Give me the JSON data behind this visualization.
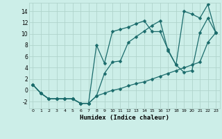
{
  "xlabel": "Humidex (Indice chaleur)",
  "bg_color": "#cceee8",
  "grid_color": "#b0d4cc",
  "line_color": "#1a6b6b",
  "xlim": [
    -0.5,
    23.5
  ],
  "ylim": [
    -3.2,
    15.5
  ],
  "xticks": [
    0,
    1,
    2,
    3,
    4,
    5,
    6,
    7,
    8,
    9,
    10,
    11,
    12,
    13,
    14,
    15,
    16,
    17,
    18,
    19,
    20,
    21,
    22,
    23
  ],
  "yticks": [
    -2,
    0,
    2,
    4,
    6,
    8,
    10,
    12,
    14
  ],
  "line1_x": [
    0,
    1,
    2,
    3,
    4,
    5,
    6,
    7,
    8,
    9,
    10,
    11,
    12,
    13,
    14,
    15,
    16,
    17,
    18,
    19,
    20,
    21,
    22,
    23
  ],
  "line1_y": [
    1,
    -0.5,
    -1.5,
    -1.5,
    -1.5,
    -1.5,
    -2.3,
    -2.3,
    8,
    4.8,
    10.4,
    10.8,
    11.2,
    11.8,
    12.3,
    10.4,
    10.4,
    7.2,
    4.5,
    14,
    13.5,
    12.8,
    15.2,
    10.2
  ],
  "line2_x": [
    0,
    1,
    2,
    3,
    4,
    5,
    6,
    7,
    8,
    9,
    10,
    11,
    12,
    13,
    14,
    15,
    16,
    17,
    18,
    19,
    20,
    21,
    22,
    23
  ],
  "line2_y": [
    1,
    -0.5,
    -1.5,
    -1.5,
    -1.5,
    -1.5,
    -2.3,
    -2.3,
    -1,
    3,
    5.0,
    5.2,
    8.5,
    9.5,
    10.5,
    11.5,
    12.3,
    7.0,
    4.5,
    3.2,
    3.5,
    10.2,
    12.8,
    10.2
  ],
  "line3_x": [
    0,
    1,
    2,
    3,
    4,
    5,
    6,
    7,
    8,
    9,
    10,
    11,
    12,
    13,
    14,
    15,
    16,
    17,
    18,
    19,
    20,
    21,
    22,
    23
  ],
  "line3_y": [
    1,
    -0.5,
    -1.5,
    -1.5,
    -1.5,
    -1.5,
    -2.3,
    -2.3,
    -1,
    -0.5,
    0,
    0.3,
    0.8,
    1.2,
    1.5,
    2.0,
    2.5,
    3.0,
    3.5,
    4.0,
    4.5,
    5.0,
    8.5,
    10.2
  ]
}
